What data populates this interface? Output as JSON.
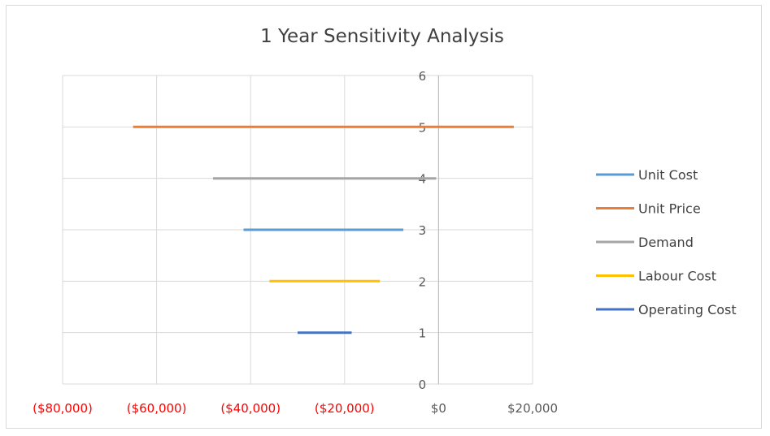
{
  "chart_data": {
    "type": "line",
    "title": "1 Year Sensitivity Analysis",
    "xlabel": "",
    "ylabel": "",
    "xlim": [
      -80000,
      20000
    ],
    "ylim": [
      0,
      6
    ],
    "x_tick_labels": [
      "($80,000)",
      "($60,000)",
      "($40,000)",
      "($20,000)",
      "$0",
      "$20,000"
    ],
    "x_tick_values": [
      -80000,
      -60000,
      -40000,
      -20000,
      0,
      20000
    ],
    "x_tick_colors": [
      "#ff0000",
      "#ff0000",
      "#ff0000",
      "#ff0000",
      "#595959",
      "#595959"
    ],
    "y_tick_labels": [
      "0",
      "1",
      "2",
      "3",
      "4",
      "5",
      "6"
    ],
    "y_tick_values": [
      0,
      1,
      2,
      3,
      4,
      5,
      6
    ],
    "grid": true,
    "legend_position": "right",
    "series": [
      {
        "name": "Unit Cost",
        "color": "#5b9bd5",
        "x": [
          -41500,
          -7500
        ],
        "y": [
          3,
          3
        ]
      },
      {
        "name": "Unit Price",
        "color": "#ed7d31",
        "x": [
          -65000,
          16000
        ],
        "y": [
          5,
          5
        ]
      },
      {
        "name": "Demand",
        "color": "#a5a5a5",
        "x": [
          -48000,
          -500
        ],
        "y": [
          4,
          4
        ]
      },
      {
        "name": "Labour Cost",
        "color": "#ffc000",
        "x": [
          -36000,
          -12500
        ],
        "y": [
          2,
          2
        ]
      },
      {
        "name": "Operating Cost",
        "color": "#4472c4",
        "x": [
          -30000,
          -18500
        ],
        "y": [
          1,
          1
        ]
      }
    ]
  }
}
